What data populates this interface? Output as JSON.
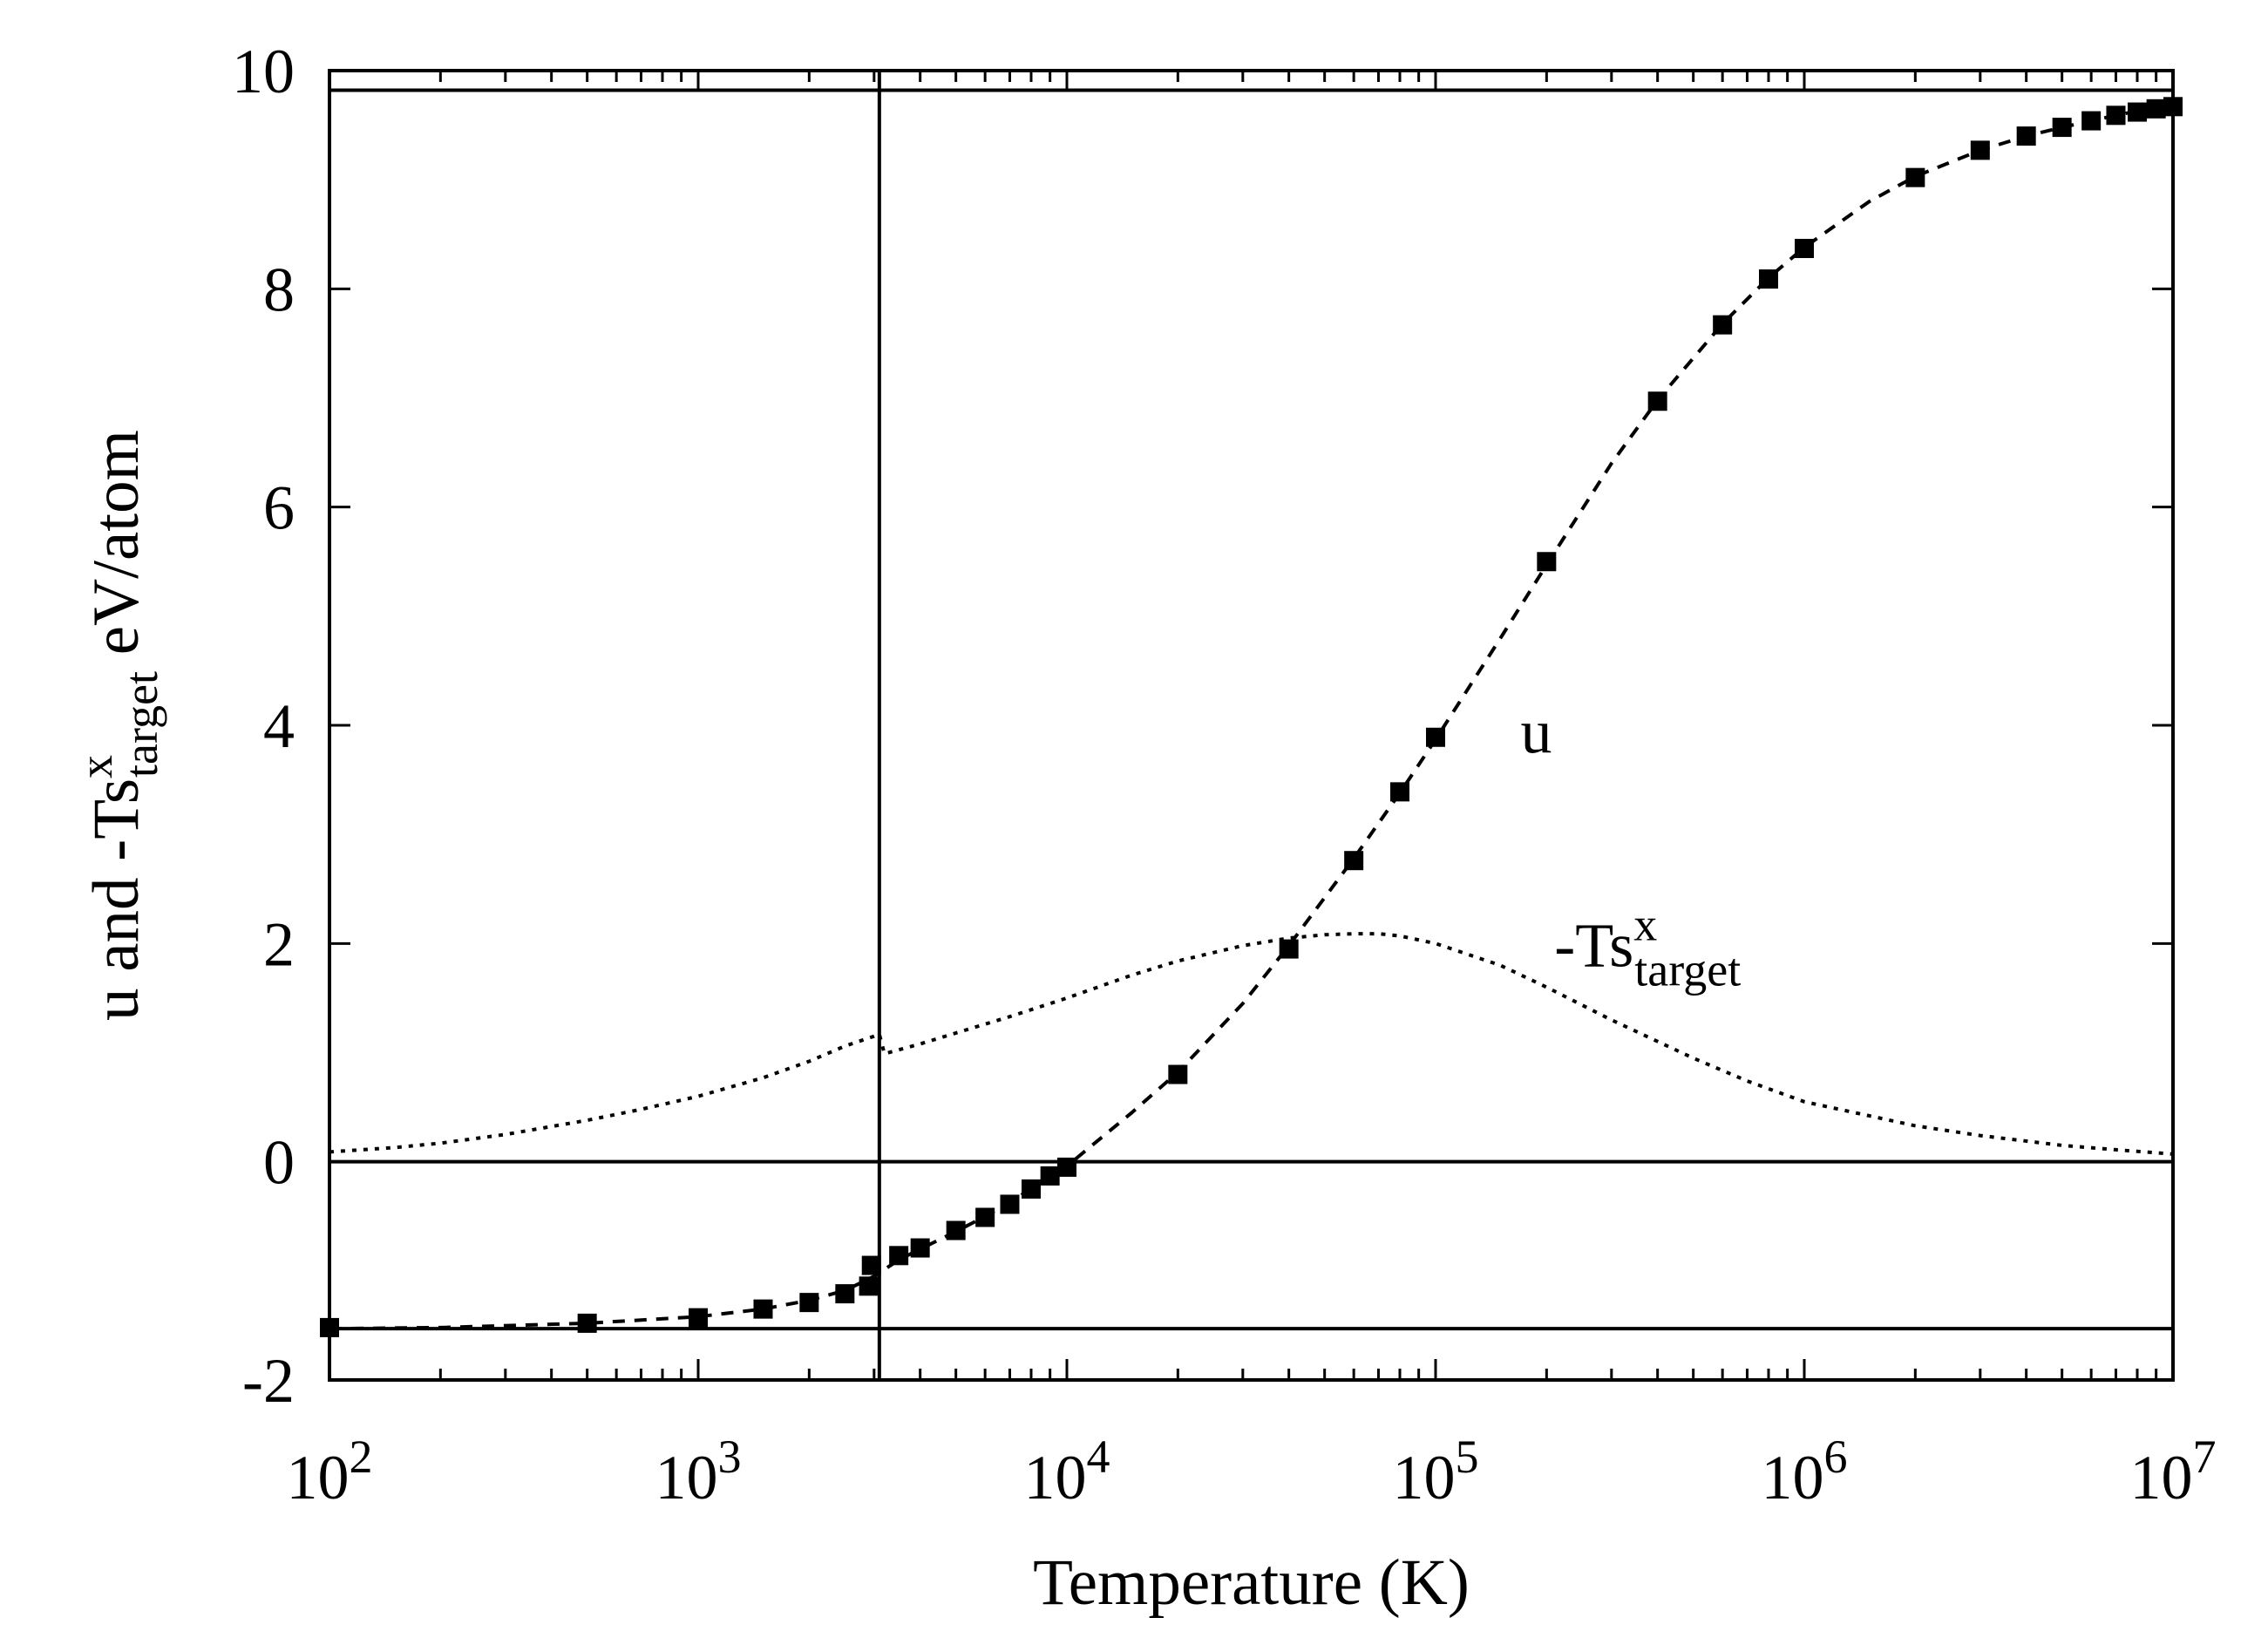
{
  "chart_data": {
    "type": "scatter",
    "title": "",
    "xlabel": "Temperature (K)",
    "ylabel": {
      "main": "u and -Ts",
      "sup": "x",
      "sub": "target",
      "unit": " eV/atom"
    },
    "xscale": "log",
    "xlim": [
      100,
      10000000
    ],
    "ylim": [
      -2,
      10
    ],
    "x_tick_labels": [
      {
        "value": 100,
        "base": "10",
        "exp": "2"
      },
      {
        "value": 1000,
        "base": "10",
        "exp": "3"
      },
      {
        "value": 10000,
        "base": "10",
        "exp": "4"
      },
      {
        "value": 100000,
        "base": "10",
        "exp": "5"
      },
      {
        "value": 1000000,
        "base": "10",
        "exp": "6"
      },
      {
        "value": 10000000,
        "base": "10",
        "exp": "7"
      }
    ],
    "y_ticks": [
      -2,
      0,
      2,
      4,
      6,
      8,
      10
    ],
    "y_tick_labels": [
      "-2",
      "0",
      "2",
      "4",
      "6",
      "8",
      "10"
    ],
    "reference_lines": {
      "horizontal": [
        9.82,
        0,
        -1.53
      ],
      "vertical": [
        3100
      ]
    },
    "series": [
      {
        "name": "u",
        "label": "u",
        "style": "squares",
        "color": "#000000",
        "x": [
          100,
          500,
          1000,
          1500,
          2000,
          2500,
          2900,
          2950,
          3500,
          4000,
          5000,
          6000,
          7000,
          8000,
          9000,
          10000,
          20000,
          40000,
          60000,
          80000,
          100000,
          200000,
          400000,
          600000,
          800000,
          1000000,
          2000000,
          3000000,
          4000000,
          5000000,
          6000000,
          7000000,
          8000000,
          9000000,
          10000000
        ],
        "y": [
          -1.52,
          -1.48,
          -1.43,
          -1.35,
          -1.29,
          -1.21,
          -1.14,
          -0.95,
          -0.86,
          -0.79,
          -0.63,
          -0.51,
          -0.39,
          -0.25,
          -0.13,
          -0.05,
          0.8,
          1.95,
          2.76,
          3.39,
          3.89,
          5.5,
          6.97,
          7.67,
          8.09,
          8.37,
          9.02,
          9.27,
          9.4,
          9.48,
          9.54,
          9.59,
          9.62,
          9.65,
          9.67
        ]
      },
      {
        "name": "u-fit",
        "style": "dashed",
        "color": "#000000",
        "x": [
          100,
          200,
          500,
          1000,
          1500,
          2000,
          2500,
          3000,
          3500,
          4000,
          5000,
          6000,
          7000,
          8000,
          9000,
          10000,
          15000,
          20000,
          30000,
          40000,
          60000,
          80000,
          100000,
          150000,
          200000,
          300000,
          400000,
          600000,
          800000,
          1000000,
          1500000,
          2000000,
          3000000,
          4000000,
          5000000,
          6000000,
          7000000,
          8000000,
          9000000,
          10000000
        ],
        "y": [
          -1.53,
          -1.52,
          -1.48,
          -1.42,
          -1.35,
          -1.27,
          -1.18,
          -1.05,
          -0.9,
          -0.8,
          -0.64,
          -0.5,
          -0.37,
          -0.25,
          -0.14,
          -0.04,
          0.45,
          0.82,
          1.45,
          1.98,
          2.78,
          3.38,
          3.87,
          4.8,
          5.47,
          6.4,
          6.98,
          7.68,
          8.1,
          8.38,
          8.8,
          9.03,
          9.27,
          9.4,
          9.48,
          9.54,
          9.59,
          9.63,
          9.66,
          9.68
        ]
      },
      {
        "name": "-Ts_target",
        "label_main": "-Ts",
        "label_sup": "x",
        "label_sub": "target",
        "style": "dotted",
        "color": "#000000",
        "x": [
          100,
          150,
          200,
          300,
          500,
          700,
          1000,
          1500,
          2000,
          2500,
          3000,
          3100,
          3200,
          4000,
          5000,
          7000,
          10000,
          15000,
          20000,
          30000,
          40000,
          50000,
          60000,
          70000,
          80000,
          100000,
          150000,
          200000,
          300000,
          500000,
          700000,
          1000000,
          2000000,
          3000000,
          5000000,
          7000000,
          10000000
        ],
        "y": [
          0.09,
          0.13,
          0.17,
          0.25,
          0.38,
          0.48,
          0.6,
          0.77,
          0.92,
          1.06,
          1.15,
          1.17,
          0.99,
          1.08,
          1.18,
          1.33,
          1.5,
          1.71,
          1.84,
          1.98,
          2.05,
          2.08,
          2.09,
          2.09,
          2.07,
          2.0,
          1.8,
          1.6,
          1.3,
          0.95,
          0.74,
          0.55,
          0.33,
          0.24,
          0.15,
          0.11,
          0.07
        ]
      }
    ],
    "curve_labels": [
      {
        "series": "u",
        "text": "u",
        "at_x": 170000,
        "at_y": 3.95
      },
      {
        "series": "-Ts_target",
        "text_main": "-Ts",
        "text_sup": "x",
        "text_sub": "target",
        "at_x": 210000,
        "at_y": 1.95
      }
    ]
  }
}
